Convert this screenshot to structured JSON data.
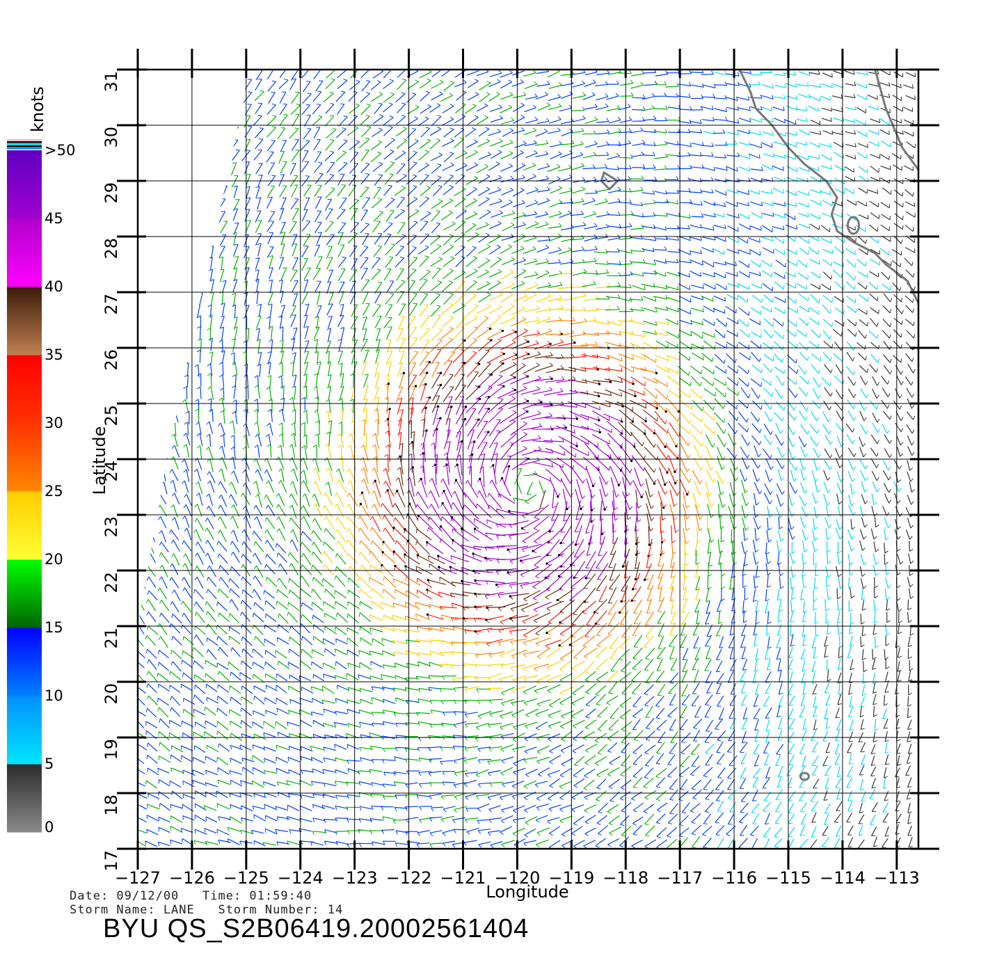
{
  "chart_data": {
    "type": "wind-vector-map",
    "xlabel": "Longitude",
    "ylabel": "Latitude",
    "x_ticks": [
      -127,
      -126,
      -125,
      -124,
      -123,
      -122,
      -121,
      -120,
      -119,
      -118,
      -117,
      -116,
      -115,
      -114,
      -113
    ],
    "y_ticks": [
      17,
      18,
      19,
      20,
      21,
      22,
      23,
      24,
      25,
      26,
      27,
      28,
      29,
      30,
      31
    ],
    "xlim": [
      -127,
      -112.6
    ],
    "ylim": [
      17,
      31
    ],
    "x_tick_labels": [
      "−127",
      "−126",
      "−125",
      "−124",
      "−123",
      "−122",
      "−121",
      "−120",
      "−119",
      "−118",
      "−117",
      "−116",
      "−115",
      "−114",
      "−113"
    ],
    "y_tick_labels": [
      "17",
      "18",
      "19",
      "20",
      "21",
      "22",
      "23",
      "24",
      "25",
      "26",
      "27",
      "28",
      "29",
      "30",
      "31"
    ],
    "storm_center_approx": {
      "lon": -119.8,
      "lat": 23.5
    },
    "grid": true,
    "colorbar": {
      "title": "knots",
      "tick_labels": [
        "0",
        "5",
        "10",
        "15",
        "20",
        "25",
        "30",
        "35",
        "40",
        "45",
        ">50"
      ],
      "bands": [
        {
          "from": 0,
          "to": 5,
          "colors": [
            "#8a8a8a",
            "#2b2b2b"
          ]
        },
        {
          "from": 5,
          "to": 10,
          "colors": [
            "#00e5ff",
            "#0090ff"
          ]
        },
        {
          "from": 10,
          "to": 15,
          "colors": [
            "#0080ff",
            "#0000ff"
          ]
        },
        {
          "from": 15,
          "to": 20,
          "colors": [
            "#006400",
            "#00ff00"
          ]
        },
        {
          "from": 20,
          "to": 25,
          "colors": [
            "#ffff33",
            "#ffcc00"
          ]
        },
        {
          "from": 25,
          "to": 30,
          "colors": [
            "#ff8800",
            "#ff3300"
          ]
        },
        {
          "from": 30,
          "to": 35,
          "colors": [
            "#ff3300",
            "#ff0000"
          ]
        },
        {
          "from": 35,
          "to": 40,
          "colors": [
            "#c08050",
            "#3a1a0a"
          ]
        },
        {
          "from": 40,
          "to": 45,
          "colors": [
            "#ff00ff",
            "#b000cc"
          ]
        },
        {
          "from": 45,
          "to": 50,
          "colors": [
            "#a000d0",
            "#6000c0"
          ]
        }
      ]
    },
    "speed_colors": {
      "calm": "#333333",
      "light": "#00d8f0",
      "moderate": "#0040ff",
      "fresh": "#00b000",
      "strong": "#ffd000",
      "near_gale": "#ff8000",
      "gale": "#ff1800",
      "storm": "#6a2a10",
      "violent": "#a000d0"
    },
    "coast_color": "#777777"
  },
  "footer": {
    "date_line": "Date: 09/12/00   Time: 01:59:40",
    "storm_line": "Storm Name: LANE   Storm Number: 14",
    "product_id": "BYU QS_S2B06419.20002561404"
  }
}
